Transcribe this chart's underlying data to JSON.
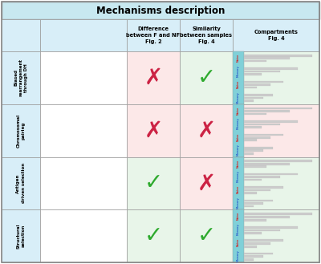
{
  "title": "Mechanisms description",
  "title_bg": "#c8e8f0",
  "col_headers": [
    "Difference\nbetween F and NF\nFig. 2",
    "Similarity\nbetween samples\nFig. 4",
    "Compartments\nFig. 4"
  ],
  "row_labels": [
    "Biased\nrearrangement\nthrough DH",
    "Chromosomal\npairing",
    "Antigen\ndriven selection",
    "Structural\nselection"
  ],
  "checks": [
    [
      false,
      true
    ],
    [
      false,
      false
    ],
    [
      true,
      false
    ],
    [
      true,
      true
    ]
  ],
  "row_bg_col1": [
    "#fce8e8",
    "#fce8e8",
    "#e8f5e9",
    "#e8f5e9"
  ],
  "row_bg_col2": [
    "#e8f5e9",
    "#fce8e8",
    "#fce8e8",
    "#e8f5e9"
  ],
  "header_bg": "#d8eef8",
  "row_label_bg": "#d8eef8",
  "bar_section_bg": [
    "#e8f5e9",
    "#fce8e8",
    "#e8f5e9",
    "#e8f5e9"
  ],
  "bar_label_bg": "#80d0d8",
  "n_bars_per_group": [
    14,
    14,
    14,
    12
  ],
  "grid_color": "#999999",
  "outer_border": "#888888",
  "check_green": "#2eaa2e",
  "cross_red": "#cc2244",
  "bar_color": "#cccccc",
  "bar_edge": "#aaaaaa"
}
